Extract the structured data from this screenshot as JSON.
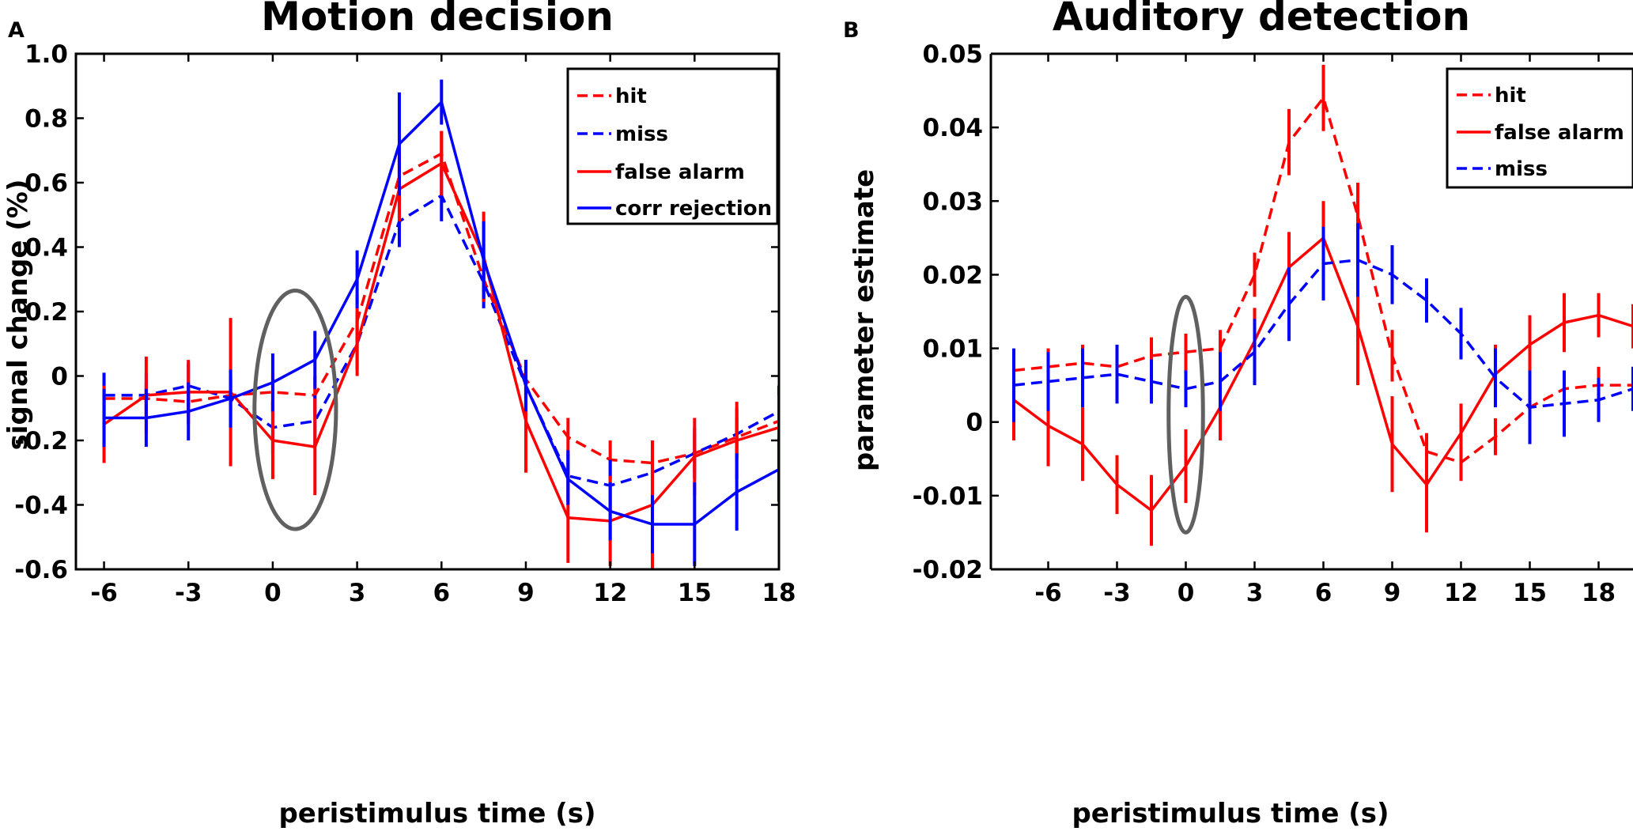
{
  "chart_data": [
    {
      "panel_label": "A",
      "type": "line",
      "title": "Motion decision",
      "xlabel": "peristimulus time (s)",
      "ylabel": "signal change (%)",
      "xlim": [
        -7,
        18
      ],
      "ylim": [
        -0.6,
        1.0
      ],
      "xticks": [
        -6,
        -3,
        0,
        3,
        6,
        9,
        12,
        15,
        18
      ],
      "xtick_labels": [
        "-6",
        "-3",
        "0",
        "3",
        "6",
        "9",
        "12",
        "15",
        "18"
      ],
      "yticks": [
        -0.6,
        -0.4,
        -0.2,
        0,
        0.2,
        0.4,
        0.6,
        0.8,
        1.0
      ],
      "ytick_labels": [
        "-0.6",
        "-0.4",
        "-0.2",
        "0",
        "0.2",
        "0.4",
        "0.6",
        "0.8",
        "1.0"
      ],
      "x": [
        -6,
        -4.5,
        -3,
        -1.5,
        0,
        1.5,
        3,
        4.5,
        6,
        7.5,
        9,
        10.5,
        12,
        13.5,
        15,
        16.5,
        18
      ],
      "legend_location": "top-right",
      "annotation": {
        "shape": "ellipse",
        "x_center": 0.8,
        "y_center": -0.105,
        "x_halfwidth": 1.45,
        "y_halfwidth": 0.37,
        "color": "#606060"
      },
      "series": [
        {
          "name": "hit",
          "color": "#ff0000",
          "style": "dashed",
          "values": [
            -0.07,
            -0.07,
            -0.08,
            -0.06,
            -0.05,
            -0.06,
            0.17,
            0.62,
            0.69,
            0.3,
            -0.01,
            -0.19,
            -0.26,
            -0.27,
            -0.24,
            -0.19,
            -0.14
          ],
          "errors": [
            0.05,
            0.05,
            0.05,
            0.05,
            0.06,
            0.06,
            0.08,
            0.07,
            0.07,
            0.07,
            0.06,
            0.06,
            0.06,
            0.06,
            0.06,
            0.06,
            0.06
          ]
        },
        {
          "name": "miss",
          "color": "#0000ff",
          "style": "dashed",
          "values": [
            -0.06,
            -0.06,
            -0.03,
            -0.07,
            -0.16,
            -0.14,
            0.1,
            0.48,
            0.56,
            0.29,
            -0.03,
            -0.31,
            -0.34,
            -0.3,
            -0.24,
            -0.18,
            -0.11
          ],
          "errors": [
            0.07,
            0.07,
            0.07,
            0.07,
            0.08,
            0.08,
            0.08,
            0.08,
            0.08,
            0.08,
            0.08,
            0.08,
            0.08,
            0.08,
            0.08,
            0.08,
            0.08
          ]
        },
        {
          "name": "false alarm",
          "color": "#ff0000",
          "style": "solid",
          "values": [
            -0.15,
            -0.06,
            -0.05,
            -0.05,
            -0.2,
            -0.22,
            0.1,
            0.58,
            0.66,
            0.37,
            -0.14,
            -0.44,
            -0.45,
            -0.4,
            -0.25,
            -0.2,
            -0.16
          ],
          "errors": [
            0.12,
            0.12,
            0.1,
            0.23,
            0.12,
            0.15,
            0.1,
            0.1,
            0.1,
            0.14,
            0.16,
            0.14,
            0.14,
            0.2,
            0.12,
            0.12,
            0.1
          ]
        },
        {
          "name": "corr rejection",
          "color": "#0000ff",
          "style": "solid",
          "values": [
            -0.13,
            -0.13,
            -0.11,
            -0.07,
            -0.02,
            0.05,
            0.3,
            0.72,
            0.85,
            0.36,
            -0.03,
            -0.32,
            -0.42,
            -0.46,
            -0.46,
            -0.36,
            -0.29
          ],
          "errors": [
            0.09,
            0.09,
            0.09,
            0.09,
            0.09,
            0.09,
            0.09,
            0.16,
            0.07,
            0.12,
            0.08,
            0.08,
            0.09,
            0.09,
            0.13,
            0.12,
            0.1
          ]
        }
      ]
    },
    {
      "panel_label": "B",
      "type": "line",
      "title": "Auditory detection",
      "xlabel": "peristimulus time (s)",
      "ylabel": "parameter estimate",
      "xlim": [
        -8.5,
        19.5
      ],
      "ylim": [
        -0.02,
        0.05
      ],
      "xticks": [
        -6,
        -3,
        0,
        3,
        6,
        9,
        12,
        15,
        18
      ],
      "xtick_labels": [
        "-6",
        "-3",
        "0",
        "3",
        "6",
        "9",
        "12",
        "15",
        "18"
      ],
      "yticks": [
        -0.02,
        -0.01,
        0,
        0.01,
        0.02,
        0.03,
        0.04,
        0.05
      ],
      "ytick_labels": [
        "-0.02",
        "-0.01",
        "0",
        "0.01",
        "0.02",
        "0.03",
        "0.04",
        "0.05"
      ],
      "x": [
        -7.5,
        -6,
        -4.5,
        -3,
        -1.5,
        0,
        1.5,
        3,
        4.5,
        6,
        7.5,
        9,
        10.5,
        12,
        13.5,
        15,
        16.5,
        18,
        19.5
      ],
      "legend_location": "top-right",
      "annotation": {
        "shape": "ellipse",
        "x_center": 0,
        "y_center": 0.001,
        "x_halfwidth": 0.75,
        "y_halfwidth": 0.016,
        "color": "#606060"
      },
      "series": [
        {
          "name": "hit",
          "color": "#ff0000",
          "style": "dashed",
          "values": [
            0.007,
            0.0075,
            0.008,
            0.0075,
            0.009,
            0.0095,
            0.01,
            0.02,
            0.038,
            0.044,
            0.028,
            0.009,
            -0.004,
            -0.0055,
            -0.002,
            0.002,
            0.0045,
            0.005,
            0.005
          ],
          "errors": [
            0.0025,
            0.0025,
            0.0025,
            0.0025,
            0.0025,
            0.0025,
            0.0025,
            0.003,
            0.0045,
            0.0045,
            0.0045,
            0.0035,
            0.0025,
            0.0025,
            0.0025,
            0.0025,
            0.0025,
            0.0025,
            0.0025
          ]
        },
        {
          "name": "false alarm",
          "color": "#ff0000",
          "style": "solid",
          "values": [
            0.003,
            -0.0005,
            -0.003,
            -0.0085,
            -0.012,
            -0.006,
            0.002,
            0.011,
            0.021,
            0.025,
            0.013,
            -0.003,
            -0.0085,
            -0.0015,
            0.0065,
            0.0105,
            0.0135,
            0.0145,
            0.013
          ],
          "errors": [
            0.0055,
            0.0055,
            0.005,
            0.004,
            0.0048,
            0.005,
            0.0045,
            0.0045,
            0.0048,
            0.005,
            0.008,
            0.0065,
            0.0065,
            0.004,
            0.004,
            0.004,
            0.004,
            0.003,
            0.003
          ]
        },
        {
          "name": "miss",
          "color": "#0000ff",
          "style": "dashed",
          "values": [
            0.005,
            0.0055,
            0.006,
            0.0065,
            0.0055,
            0.0045,
            0.0055,
            0.0095,
            0.016,
            0.0215,
            0.022,
            0.02,
            0.0165,
            0.012,
            0.006,
            0.002,
            0.0025,
            0.003,
            0.0045
          ],
          "errors": [
            0.005,
            0.004,
            0.004,
            0.004,
            0.003,
            0.0025,
            0.004,
            0.0045,
            0.005,
            0.005,
            0.005,
            0.004,
            0.003,
            0.0035,
            0.004,
            0.005,
            0.0045,
            0.003,
            0.003
          ]
        }
      ]
    }
  ]
}
